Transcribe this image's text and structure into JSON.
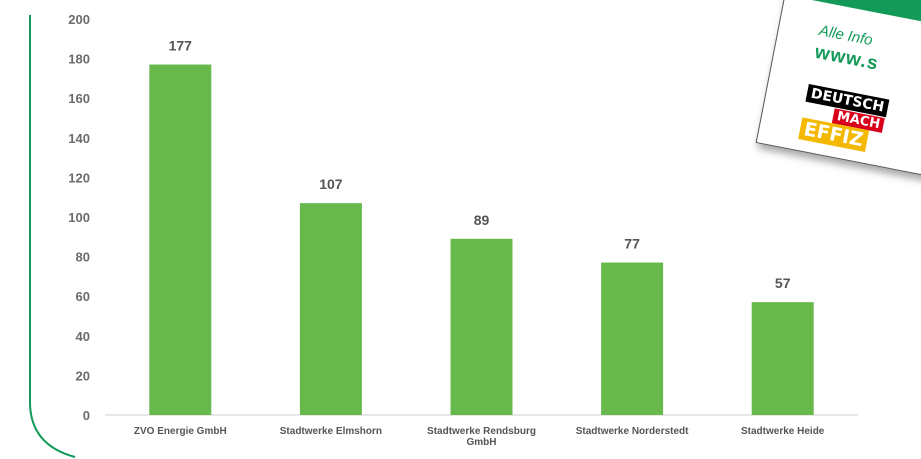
{
  "chart_data": {
    "type": "bar",
    "categories": [
      "ZVO Energie GmbH",
      "Stadtwerke Elmshorn",
      "Stadtwerke Rendsburg GmbH",
      "Stadtwerke Norderstedt",
      "Stadtwerke Heide"
    ],
    "values": [
      177,
      107,
      89,
      77,
      57
    ],
    "ylim": [
      0,
      200
    ],
    "yticks": [
      0,
      20,
      40,
      60,
      80,
      100,
      120,
      140,
      160,
      180,
      200
    ],
    "data_labels": true,
    "grid": false,
    "bar_color": "#67b94c",
    "frame_color": "#139a58"
  },
  "flyer": {
    "info_text": "Alle Info",
    "url_text": "www.s",
    "badge_1": "DEUTSCH",
    "badge_2": "MACH",
    "badge_3": "EFFIZ",
    "colors": {
      "green": "#139a58",
      "black": "#000000",
      "red": "#d9001b",
      "yellow": "#f5b800"
    }
  }
}
